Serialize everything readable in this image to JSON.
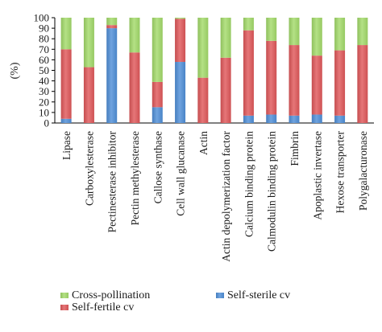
{
  "chart_data": {
    "type": "bar",
    "stacked": true,
    "ylabel": "(%)",
    "xlabel": "",
    "ylim": [
      0,
      100
    ],
    "yticks": [
      0,
      10,
      20,
      30,
      40,
      50,
      60,
      70,
      80,
      90,
      100
    ],
    "grid": false,
    "legend_position": "bottom",
    "categories": [
      "Lipase",
      "Carboxylesterase",
      "Pectinesterase inhibitor",
      "Pectin methylesterase",
      "Callose synthase",
      "Cell wall glucanase",
      "Actin",
      "Actin depolymerization factor",
      "Calcium binding protein",
      "Calmodulin binding protein",
      "Fimbrin",
      "Apoplastic invertase",
      "Hexose transporter",
      "Polygalacturonase"
    ],
    "series": [
      {
        "name": "Self-sterile cv",
        "color": "#4f8fd8",
        "values": [
          4,
          0,
          90,
          0,
          15,
          58,
          0,
          0,
          7,
          8,
          7,
          8,
          7,
          0
        ]
      },
      {
        "name": "Self-fertile cv",
        "color": "#e0585a",
        "values": [
          66,
          53,
          3,
          67,
          24,
          41,
          43,
          62,
          81,
          70,
          67,
          56,
          62,
          74
        ]
      },
      {
        "name": "Cross-pollination",
        "color": "#a3da6a",
        "values": [
          30,
          47,
          7,
          33,
          61,
          1,
          57,
          38,
          12,
          22,
          26,
          36,
          31,
          26
        ]
      }
    ],
    "legend": {
      "items": [
        {
          "name": "Cross-pollination",
          "color": "#a3da6a"
        },
        {
          "name": "Self-sterile cv",
          "color": "#4f8fd8"
        },
        {
          "name": "Self-fertile cv",
          "color": "#e0585a"
        }
      ]
    }
  }
}
